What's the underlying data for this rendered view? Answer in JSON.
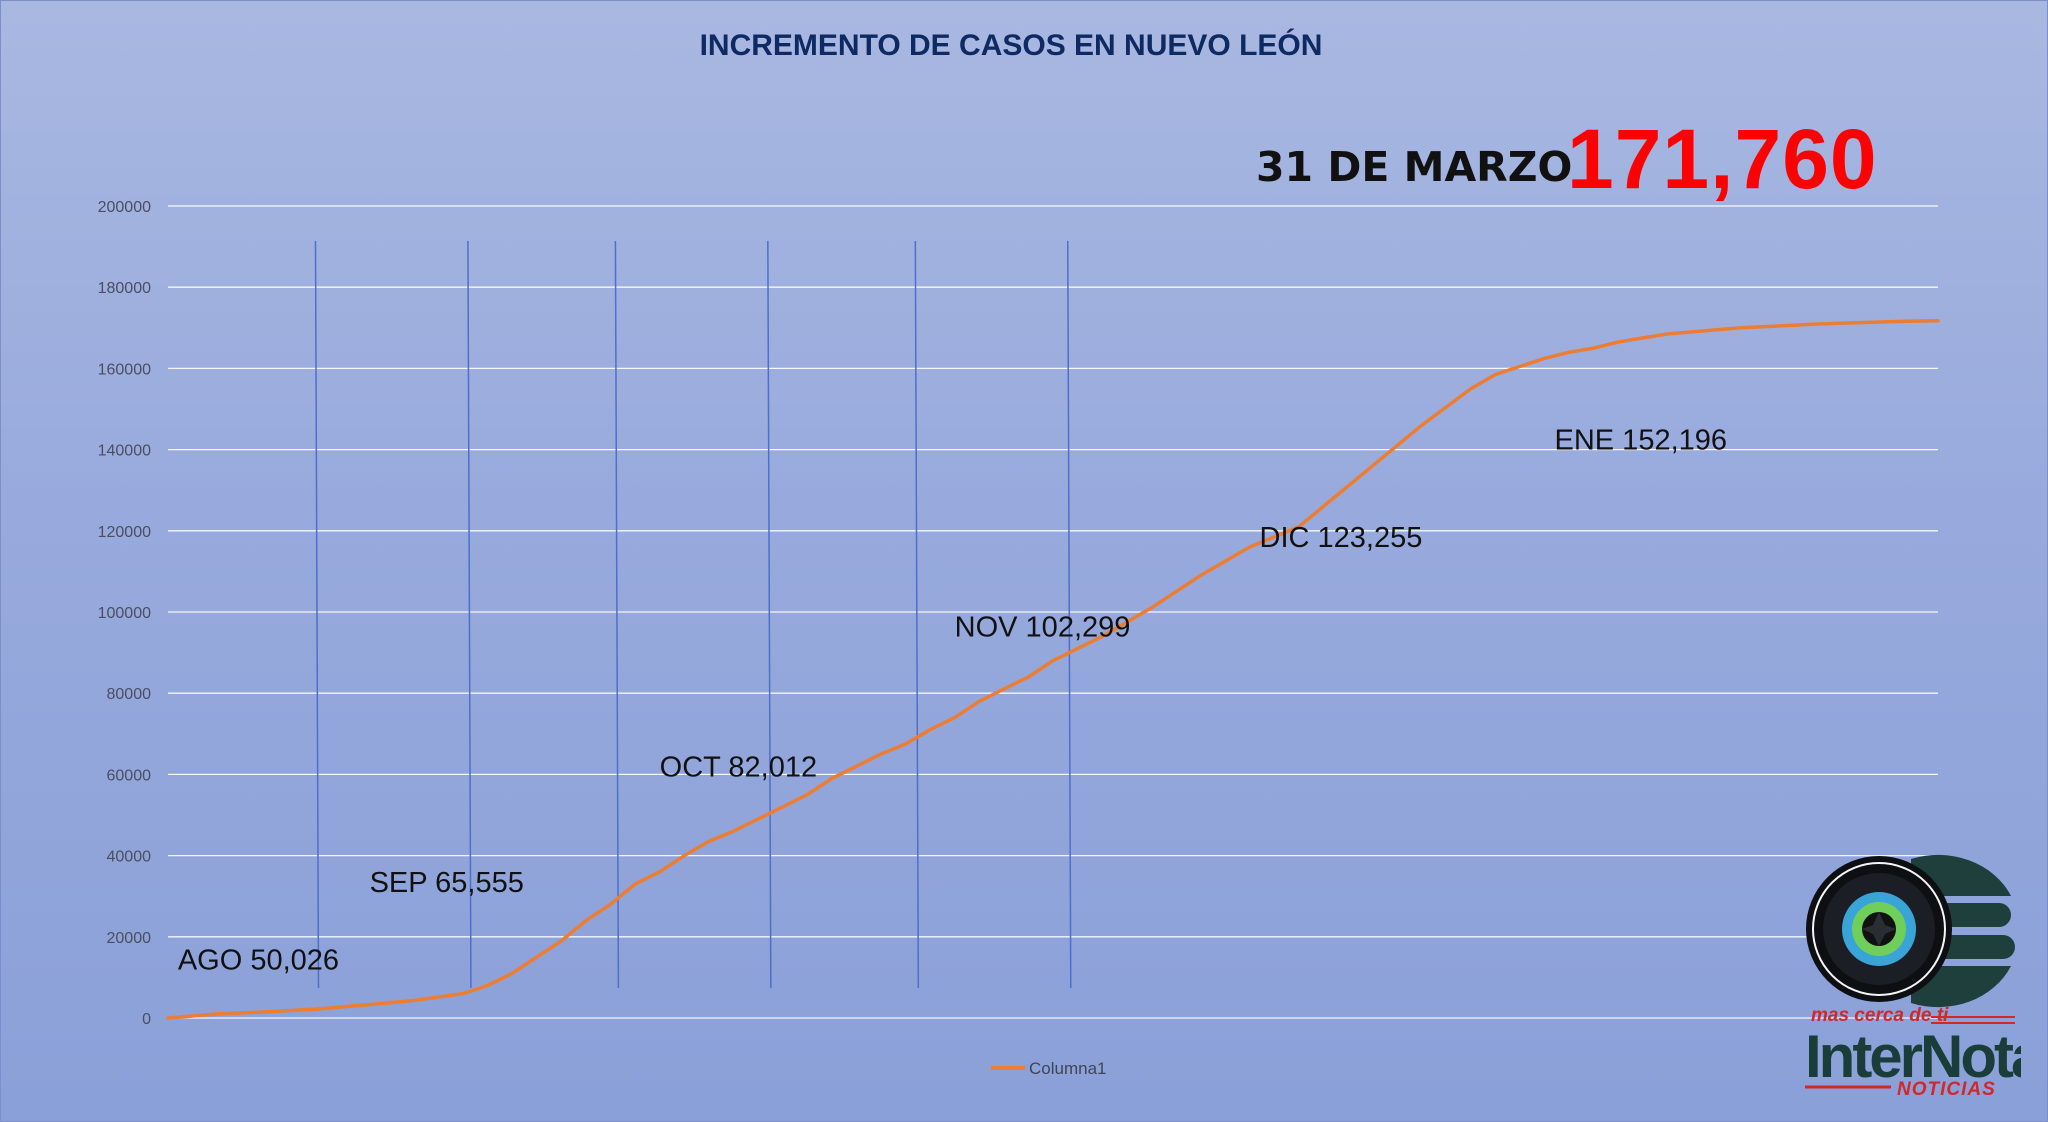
{
  "title": "INCREMENTO DE CASOS EN NUEVO LEÓN",
  "headline": {
    "date": "31 DE MARZO",
    "total": "171,760"
  },
  "colors": {
    "line": "#ed7d31",
    "title": "#0f2a63",
    "total": "#ff0000",
    "grid": "#ffffff",
    "month_dividers": "#4f6fc8"
  },
  "month_labels": [
    {
      "text": "AGO 50,026",
      "day": 2,
      "value": 12000
    },
    {
      "text": "SEP 65,555",
      "day": 41,
      "value": 31000
    },
    {
      "text": "OCT 82,012",
      "day": 100,
      "value": 59500
    },
    {
      "text": "NOV 102,299",
      "day": 160,
      "value": 94000
    },
    {
      "text": "DIC 123,255",
      "day": 222,
      "value": 116000
    },
    {
      "text": "ENE 152,196",
      "day": 282,
      "value": 140000
    }
  ],
  "logo": {
    "tagline": "mas cerca de ti",
    "name": "InterNota",
    "sub": "NOTICIAS"
  },
  "chart_data": {
    "type": "line",
    "title": "INCREMENTO DE CASOS EN NUEVO LEÓN",
    "xlabel": "",
    "ylabel": "",
    "ylim": [
      0,
      200000
    ],
    "yticks": [
      0,
      20000,
      40000,
      60000,
      80000,
      100000,
      120000,
      140000,
      160000,
      180000,
      200000
    ],
    "ytick_labels": [
      "0",
      "20000",
      "40000",
      "60000",
      "80000",
      "100000",
      "120000",
      "140000",
      "160000",
      "180000",
      "200000"
    ],
    "grid": true,
    "legend": "bottom",
    "month_dividers": [
      30,
      61,
      91,
      122,
      152,
      183
    ],
    "series": [
      {
        "name": "Columna1",
        "x": [
          0,
          5,
          10,
          20,
          30,
          40,
          50,
          60,
          65,
          70,
          75,
          80,
          85,
          90,
          95,
          100,
          105,
          110,
          115,
          120,
          125,
          130,
          135,
          140,
          145,
          150,
          155,
          160,
          165,
          170,
          175,
          180,
          185,
          190,
          195,
          200,
          205,
          210,
          215,
          220,
          225,
          230,
          235,
          240,
          245,
          250,
          255,
          260,
          265,
          270,
          275,
          280,
          285,
          290,
          295,
          300,
          305,
          310,
          315,
          320,
          325,
          330,
          335,
          340,
          345,
          350,
          355,
          360
        ],
        "values": [
          0,
          500,
          1000,
          1500,
          2200,
          3200,
          4300,
          6000,
          8000,
          11000,
          15000,
          19000,
          24000,
          28000,
          33000,
          36000,
          40000,
          43500,
          46000,
          49000,
          52000,
          55000,
          59000,
          62000,
          65000,
          67500,
          71000,
          74000,
          78000,
          81000,
          84000,
          88000,
          91000,
          94000,
          97500,
          101000,
          105000,
          109000,
          112500,
          116000,
          118500,
          121000,
          126000,
          131000,
          136000,
          141000,
          146000,
          150500,
          155000,
          158500,
          160500,
          162500,
          164000,
          165000,
          166500,
          167500,
          168500,
          169000,
          169500,
          170000,
          170300,
          170600,
          170900,
          171100,
          171300,
          171500,
          171650,
          171760
        ]
      }
    ]
  }
}
